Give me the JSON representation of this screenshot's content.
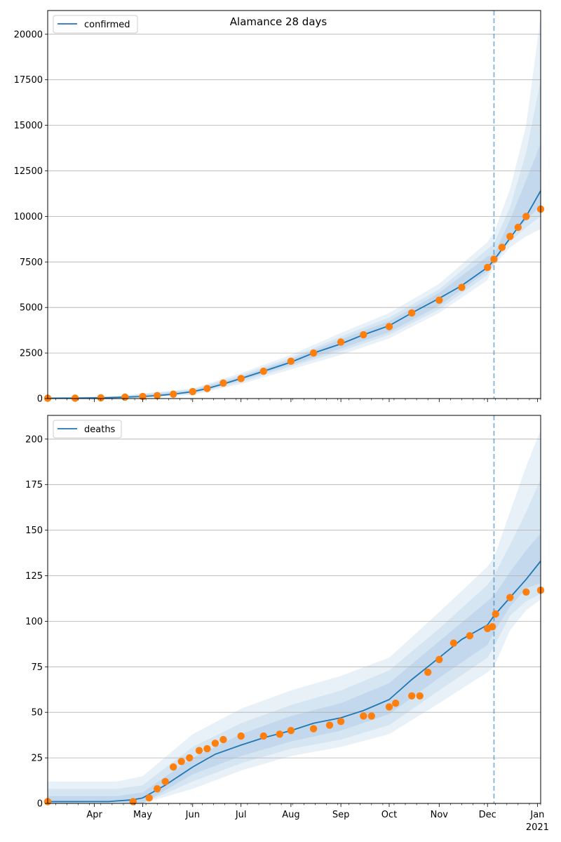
{
  "chart_data": [
    {
      "type": "line",
      "title": "Alamance 28 days",
      "legend": {
        "entries": [
          "confirmed"
        ],
        "position": "top-left"
      },
      "grid": "y",
      "ylim": [
        0,
        21300
      ],
      "yticks": [
        0,
        2500,
        5000,
        7500,
        10000,
        12500,
        15000,
        17500,
        20000
      ],
      "yticklabels": [
        "0",
        "2500",
        "5000",
        "7500",
        "10000",
        "12500",
        "15000",
        "17500",
        "20000"
      ],
      "x_range": [
        "2020-03-03",
        "2021-01-03"
      ],
      "vline_date": "2020-12-05",
      "series": [
        {
          "name": "confirmed",
          "kind": "model",
          "color": "#1f77b4",
          "x": [
            "2020-03-03",
            "2020-03-20",
            "2020-04-05",
            "2020-04-20",
            "2020-05-01",
            "2020-05-10",
            "2020-05-20",
            "2020-06-01",
            "2020-06-10",
            "2020-06-20",
            "2020-07-01",
            "2020-07-15",
            "2020-08-01",
            "2020-08-15",
            "2020-09-01",
            "2020-09-15",
            "2020-10-01",
            "2020-10-15",
            "2020-11-01",
            "2020-11-15",
            "2020-12-01",
            "2020-12-05",
            "2020-12-15",
            "2020-12-25",
            "2021-01-03"
          ],
          "y": [
            20,
            25,
            40,
            80,
            110,
            160,
            240,
            380,
            550,
            800,
            1100,
            1500,
            2000,
            2500,
            3000,
            3500,
            4000,
            4700,
            5500,
            6200,
            7200,
            7600,
            8800,
            10000,
            11400
          ]
        },
        {
          "name": "",
          "kind": "observed",
          "color": "#ff7f0e",
          "x": [
            "2020-03-03",
            "2020-03-20",
            "2020-04-05",
            "2020-04-20",
            "2020-05-01",
            "2020-05-10",
            "2020-05-20",
            "2020-06-01",
            "2020-06-10",
            "2020-06-20",
            "2020-07-01",
            "2020-07-15",
            "2020-08-01",
            "2020-08-15",
            "2020-09-01",
            "2020-09-15",
            "2020-10-01",
            "2020-10-15",
            "2020-11-01",
            "2020-11-15",
            "2020-12-01",
            "2020-12-05",
            "2020-12-10",
            "2020-12-15",
            "2020-12-20",
            "2020-12-25",
            "2021-01-03"
          ],
          "y": [
            20,
            25,
            40,
            80,
            110,
            160,
            240,
            380,
            550,
            850,
            1100,
            1500,
            2050,
            2500,
            3100,
            3500,
            3950,
            4700,
            5400,
            6100,
            7200,
            7650,
            8300,
            8900,
            9400,
            10000,
            10400
          ]
        }
      ],
      "bands": {
        "x": [
          "2020-03-03",
          "2020-04-15",
          "2020-06-01",
          "2020-07-01",
          "2020-08-01",
          "2020-09-01",
          "2020-10-01",
          "2020-11-01",
          "2020-12-01",
          "2020-12-05",
          "2020-12-15",
          "2020-12-25",
          "2021-01-03"
        ],
        "levels": [
          {
            "lower": [
              0,
              0,
              200,
              800,
              1600,
              2400,
              3300,
              4700,
              6500,
              7300,
              8300,
              8900,
              9300
            ],
            "upper": [
              60,
              140,
              560,
              1400,
              2400,
              3600,
              4700,
              6300,
              8600,
              9100,
              11500,
              15000,
              21000
            ]
          },
          {
            "lower": [
              0,
              5,
              250,
              900,
              1750,
              2600,
              3500,
              4900,
              6800,
              7400,
              8600,
              9400,
              10000
            ],
            "upper": [
              45,
              110,
              500,
              1300,
              2250,
              3400,
              4450,
              6000,
              8200,
              8500,
              10500,
              13500,
              17500
            ]
          },
          {
            "lower": [
              5,
              15,
              300,
              1000,
              1850,
              2750,
              3650,
              5100,
              7000,
              7450,
              8800,
              9800,
              10600
            ],
            "upper": [
              35,
              90,
              450,
              1200,
              2150,
              3250,
              4250,
              5800,
              7800,
              7900,
              9800,
              12000,
              14000
            ]
          }
        ]
      }
    },
    {
      "type": "line",
      "title": "",
      "legend": {
        "entries": [
          "deaths"
        ],
        "position": "top-left"
      },
      "grid": "y",
      "ylim": [
        0,
        213
      ],
      "yticks": [
        0,
        25,
        50,
        75,
        100,
        125,
        150,
        175,
        200
      ],
      "yticklabels": [
        "0",
        "25",
        "50",
        "75",
        "100",
        "125",
        "150",
        "175",
        "200"
      ],
      "x_range": [
        "2020-03-03",
        "2021-01-03"
      ],
      "xticks": [
        "2020-04-01",
        "2020-05-01",
        "2020-06-01",
        "2020-07-01",
        "2020-08-01",
        "2020-09-01",
        "2020-10-01",
        "2020-11-01",
        "2020-12-01",
        "2021-01-01"
      ],
      "xticklabels": [
        "Apr",
        "May",
        "Jun",
        "Jul",
        "Aug",
        "Sep",
        "Oct",
        "Nov",
        "Dec",
        "Jan"
      ],
      "xyearlabel": "2021",
      "vline_date": "2020-12-05",
      "series": [
        {
          "name": "deaths",
          "kind": "model",
          "color": "#1f77b4",
          "x": [
            "2020-03-03",
            "2020-04-10",
            "2020-04-25",
            "2020-05-01",
            "2020-05-15",
            "2020-06-01",
            "2020-06-15",
            "2020-07-01",
            "2020-07-15",
            "2020-08-01",
            "2020-08-15",
            "2020-09-01",
            "2020-09-15",
            "2020-10-01",
            "2020-10-15",
            "2020-11-01",
            "2020-11-15",
            "2020-12-01",
            "2020-12-05",
            "2020-12-15",
            "2020-12-25",
            "2021-01-03"
          ],
          "y": [
            1,
            1,
            2,
            3,
            10,
            20,
            27,
            32,
            36,
            40,
            44,
            47,
            51,
            57,
            68,
            80,
            90,
            98,
            103,
            113,
            123,
            133
          ]
        },
        {
          "name": "",
          "kind": "observed",
          "color": "#ff7f0e",
          "x": [
            "2020-03-03",
            "2020-04-25",
            "2020-05-05",
            "2020-05-10",
            "2020-05-15",
            "2020-05-20",
            "2020-05-25",
            "2020-05-30",
            "2020-06-05",
            "2020-06-10",
            "2020-06-15",
            "2020-06-20",
            "2020-07-01",
            "2020-07-15",
            "2020-07-25",
            "2020-08-01",
            "2020-08-15",
            "2020-08-25",
            "2020-09-01",
            "2020-09-15",
            "2020-09-20",
            "2020-10-01",
            "2020-10-05",
            "2020-10-15",
            "2020-10-20",
            "2020-10-25",
            "2020-11-01",
            "2020-11-10",
            "2020-11-20",
            "2020-12-01",
            "2020-12-04",
            "2020-12-06",
            "2020-12-15",
            "2020-12-25",
            "2021-01-03"
          ],
          "y": [
            1,
            1,
            3,
            8,
            12,
            20,
            23,
            25,
            29,
            30,
            33,
            35,
            37,
            37,
            38,
            40,
            41,
            43,
            45,
            48,
            48,
            53,
            55,
            59,
            59,
            72,
            79,
            88,
            92,
            96,
            97,
            104,
            113,
            116,
            117
          ]
        }
      ],
      "bands": {
        "x": [
          "2020-03-03",
          "2020-04-15",
          "2020-05-01",
          "2020-06-01",
          "2020-07-01",
          "2020-08-01",
          "2020-09-01",
          "2020-10-01",
          "2020-11-01",
          "2020-12-01",
          "2020-12-05",
          "2020-12-15",
          "2020-12-25",
          "2021-01-03"
        ],
        "levels": [
          {
            "lower": [
              0,
              0,
              0,
              8,
              18,
              26,
              31,
              38,
              55,
              72,
              75,
              95,
              106,
              112
            ],
            "upper": [
              12,
              12,
              15,
              38,
              52,
              62,
              70,
              80,
              105,
              130,
              135,
              160,
              185,
              205
            ]
          },
          {
            "lower": [
              0,
              0,
              0,
              12,
              22,
              30,
              35,
              43,
              62,
              80,
              86,
              103,
              111,
              115
            ],
            "upper": [
              8,
              8,
              10,
              31,
              44,
              54,
              62,
              73,
              96,
              120,
              125,
              142,
              160,
              178
            ]
          },
          {
            "lower": [
              0,
              1,
              0,
              16,
              26,
              34,
              40,
              49,
              69,
              87,
              94,
              108,
              118,
              121
            ],
            "upper": [
              4,
              4,
              6,
              25,
              38,
              48,
              55,
              66,
              89,
              111,
              114,
              127,
              139,
              148
            ]
          }
        ]
      }
    }
  ]
}
